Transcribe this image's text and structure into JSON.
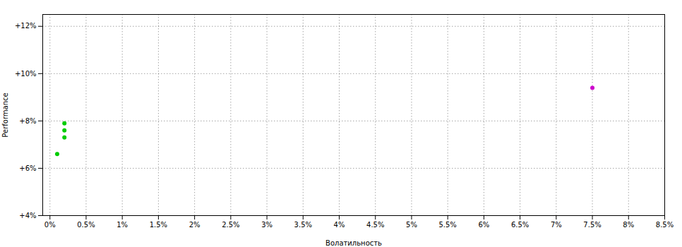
{
  "chart_data": {
    "type": "scatter",
    "xlabel": "Волатильность",
    "ylabel": "Performance",
    "xlim": [
      -0.001,
      0.085
    ],
    "ylim": [
      0.04,
      0.125
    ],
    "xticks": [
      {
        "value": 0.0,
        "label": "0%"
      },
      {
        "value": 0.005,
        "label": "0.5%"
      },
      {
        "value": 0.01,
        "label": "1%"
      },
      {
        "value": 0.015,
        "label": "1.5%"
      },
      {
        "value": 0.02,
        "label": "2%"
      },
      {
        "value": 0.025,
        "label": "2.5%"
      },
      {
        "value": 0.03,
        "label": "3%"
      },
      {
        "value": 0.035,
        "label": "3.5%"
      },
      {
        "value": 0.04,
        "label": "4%"
      },
      {
        "value": 0.045,
        "label": "4.5%"
      },
      {
        "value": 0.05,
        "label": "5%"
      },
      {
        "value": 0.055,
        "label": "5.5%"
      },
      {
        "value": 0.06,
        "label": "6%"
      },
      {
        "value": 0.065,
        "label": "6.5%"
      },
      {
        "value": 0.07,
        "label": "7%"
      },
      {
        "value": 0.075,
        "label": "7.5%"
      },
      {
        "value": 0.08,
        "label": "8%"
      },
      {
        "value": 0.085,
        "label": "8.5%"
      }
    ],
    "yticks": [
      {
        "value": 0.04,
        "label": "+4%"
      },
      {
        "value": 0.06,
        "label": "+6%"
      },
      {
        "value": 0.08,
        "label": "+8%"
      },
      {
        "value": 0.1,
        "label": "+10%"
      },
      {
        "value": 0.12,
        "label": "+12%"
      }
    ],
    "grid": true,
    "series": [
      {
        "color": "#00cc00",
        "x": [
          0.002,
          0.002,
          0.002,
          0.001
        ],
        "values": [
          0.079,
          0.076,
          0.073,
          0.066
        ]
      },
      {
        "color": "#cc00cc",
        "x": [
          0.075
        ],
        "values": [
          0.094
        ]
      }
    ]
  }
}
